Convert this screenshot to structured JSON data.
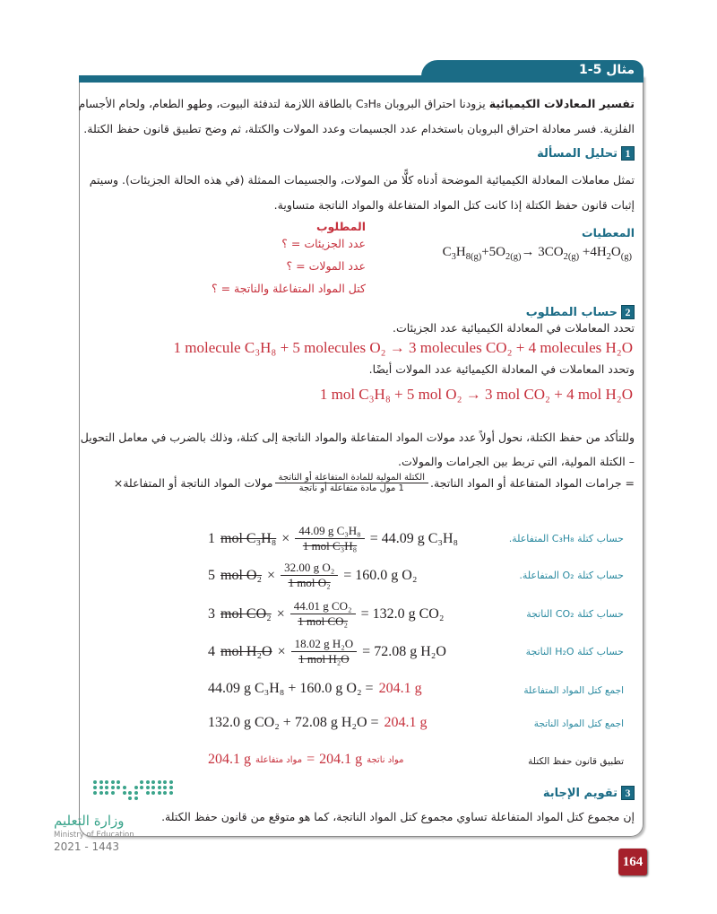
{
  "example": {
    "title": "مثال 5-1"
  },
  "intro": {
    "bold": "تفسير المعادلات الكيميائية",
    "line1": "يزودنا احتراق البروبان C₃H₈ بالطاقة اللازمة لتدفئة البيوت، وطهو الطعام، ولحام الأجسام",
    "line2": "الفلزية. فسر معادلة احتراق البروبان باستخدام عدد الجسيمات وعدد المولات والكتلة، ثم وضح تطبيق قانون حفظ الكتلة."
  },
  "step1": {
    "num": "1",
    "heading": "تحليل المسألة",
    "line1": "تمثل معاملات المعادلة الكيميائية الموضحة أدناه كلًّا من المولات، والجسيمات الممثلة (في هذه الحالة الجزيئات). وسيتم",
    "line2": "إثبات قانون حفظ الكتلة إذا كانت كتل المواد المتفاعلة والمواد الناتجة متساوية.",
    "given_label": "المعطيات",
    "given_equation": [
      {
        "t": "C"
      },
      {
        "t": "3",
        "s": true
      },
      {
        "t": "H"
      },
      {
        "t": "8(g)",
        "s": true
      },
      {
        "t": "+5O"
      },
      {
        "t": "2(g)",
        "s": true
      },
      {
        "t": "→ 3CO"
      },
      {
        "t": "2(g)",
        "s": true
      },
      {
        "t": " +4H"
      },
      {
        "t": "2",
        "s": true
      },
      {
        "t": "O"
      },
      {
        "t": "(g)",
        "s": true
      }
    ],
    "unknown_label": "المطلوب",
    "unknowns": [
      "عدد الجزيئات = ؟",
      "عدد المولات = ؟",
      "كتل المواد المتفاعلة والناتجة = ؟"
    ]
  },
  "step2": {
    "num": "2",
    "heading": "حساب المطلوب",
    "text1": "تحدد المعاملات في المعادلة الكيميائية عدد الجزيئات.",
    "eq_molecules": "1 molecule C₃H₈ + 5 molecules O₂ → 3 molecules CO₂ + 4 molecules H₂O",
    "text2": "وتحدد المعاملات في المعادلة الكيميائية عدد المولات أيضًا.",
    "eq_moles": "1 mol C₃H₈ + 5 mol O₂ → 3 mol CO₂ + 4 mol H₂O",
    "text3a": "وللتأكد من حفظ الكتلة، نحول أولاً عدد مولات المواد المتفاعلة والمواد الناتجة إلى كتلة، وذلك بالضرب في معامل التحويل",
    "text3b": "– الكتلة المولية، التي تربط بين الجرامات والمولات.",
    "formula_left": "مولات المواد الناتجة أو المتفاعلة×",
    "formula_num": "الكتلة المولية للمادة المتفاعلة أو الناتجة",
    "formula_den": "1 مول مادة متفاعلة أو ناتجة",
    "formula_right": "= جرامات المواد المتفاعلة أو المواد الناتجة.",
    "calcs": [
      {
        "label": "حساب كتلة C₃H₈ المتفاعلة.",
        "coef": "1",
        "unit": "mol C₃H₈",
        "num": "44.09 g C₃H₈",
        "den": "1 mol C₃H₈",
        "result": "= 44.09 g C₃H₈"
      },
      {
        "label": "حساب كتلة O₂ المتفاعلة.",
        "coef": "5",
        "unit": "mol O₂",
        "num": "32.00 g O₂",
        "den": "1 mol O₂",
        "result": "= 160.0 g O₂"
      },
      {
        "label": "حساب كتلة CO₂ الناتجة",
        "coef": "3",
        "unit": "mol CO₂",
        "num": "44.01 g CO₂",
        "den": "1 mol CO₂",
        "result": "= 132.0 g CO₂"
      },
      {
        "label": "حساب كتلة H₂O الناتجة",
        "coef": "4",
        "unit": "mol H₂O",
        "num": "18.02 g H₂O",
        "den": "1 mol H₂O",
        "result": "= 72.08 g H₂O"
      }
    ],
    "sum_reactants": {
      "label": "اجمع كتل المواد المتفاعلة",
      "expr": "44.09 g C₃H₈ + 160.0 g O₂ =",
      "total": "204.1 g"
    },
    "sum_products": {
      "label": "اجمع كتل المواد الناتجة",
      "expr": "132.0 g CO₂ + 72.08 g H₂O =",
      "total": "204.1 g"
    },
    "conservation": {
      "label": "تطبيق قانون حفظ الكتلة",
      "left_val": "204.1 g",
      "left_word": "مواد متفاعلة",
      "eq": "=",
      "right_val": "204.1 g",
      "right_word": "مواد ناتجة"
    }
  },
  "step3": {
    "num": "3",
    "heading": "تقويم الإجابة",
    "text": "إن مجموع كتل المواد المتفاعلة تساوي مجموع كتل المواد الناتجة، كما هو متوقع من قانون حفظ الكتلة."
  },
  "footer": {
    "ministry_ar": "وزارة التعليم",
    "ministry_en": "Ministry of Education",
    "year": "2021 - 1443",
    "page_number": "164"
  },
  "colors": {
    "accent": "#1b6c86",
    "answer_red": "#c6303c",
    "label_teal": "#2b8aa0",
    "page_badge": "#a5202b"
  }
}
